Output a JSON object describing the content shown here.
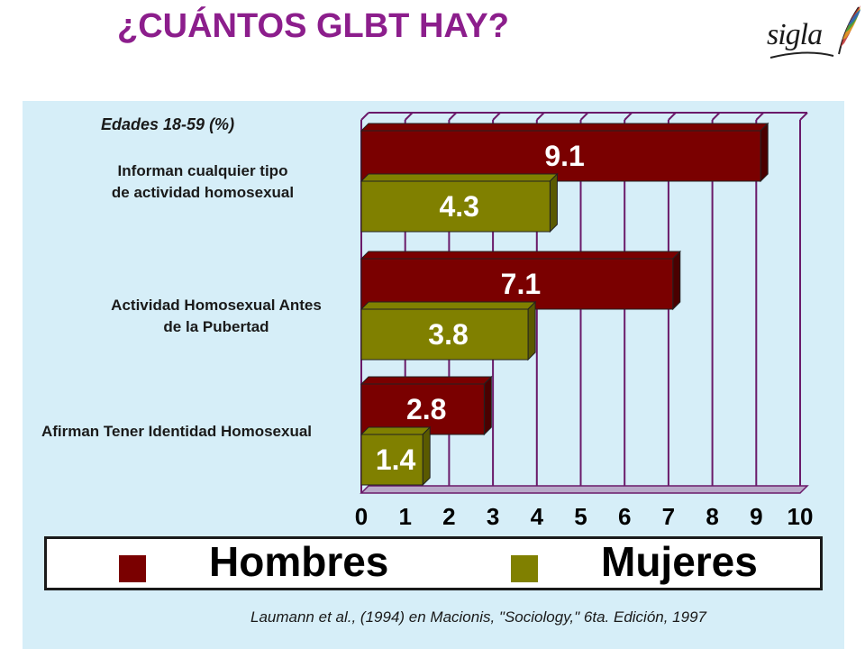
{
  "slide": {
    "title": "¿CUÁNTOS GLBT HAY?",
    "logo_text": "sigla",
    "source": "Laumann et al., (1994) en Macionis, \"Sociology,\" 6ta. Edición, 1997"
  },
  "colors": {
    "title": "#8c1e8c",
    "panel": "#d6eef8",
    "hombres": "#7a0000",
    "mujeres": "#808000",
    "grid": "#6a1a6a"
  },
  "chart_data": {
    "type": "bar",
    "orientation": "horizontal",
    "title": "",
    "subtitle": "Edades 18-59 (%)",
    "categories": [
      [
        "Informan cualquier tipo",
        "de actividad homosexual"
      ],
      [
        "Actividad Homosexual Antes",
        "de la Pubertad"
      ],
      [
        "Afirman Tener Identidad Homosexual"
      ]
    ],
    "series": [
      {
        "name": "Hombres",
        "values": [
          9.1,
          7.1,
          2.8
        ]
      },
      {
        "name": "Mujeres",
        "values": [
          4.3,
          3.8,
          1.4
        ]
      }
    ],
    "xlim": [
      0,
      10
    ],
    "x_ticks": [
      "0",
      "1",
      "2",
      "3",
      "4",
      "5",
      "6",
      "7",
      "8",
      "9",
      "10"
    ],
    "grid": true,
    "legend_position": "bottom"
  }
}
